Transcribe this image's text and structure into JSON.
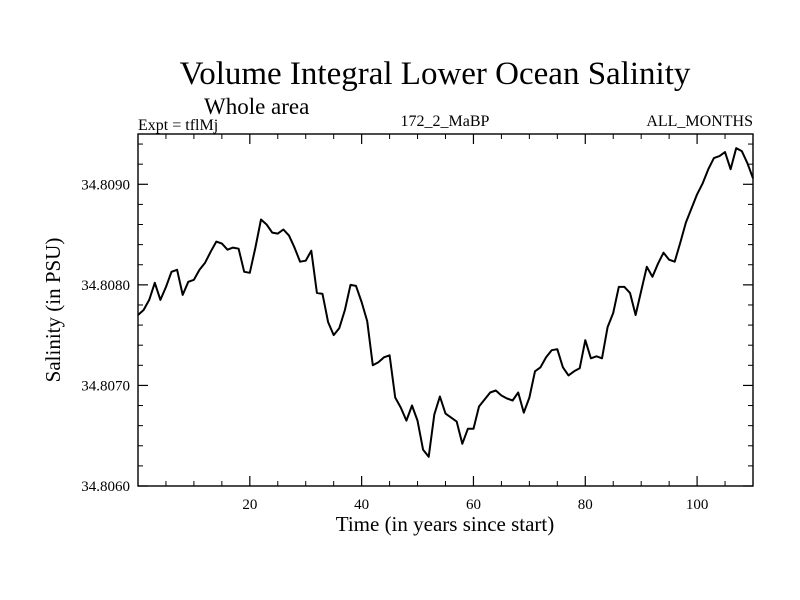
{
  "chart_data": {
    "type": "line",
    "title": "Volume Integral Lower Ocean Salinity",
    "subtitle": "Whole area",
    "header_left": "Expt = tflMj",
    "header_center": "172_2_MaBP",
    "header_right": "ALL_MONTHS",
    "xlabel": "Time (in years since start)",
    "ylabel": "Salinity (in PSU)",
    "xlim": [
      0,
      110
    ],
    "ylim": [
      34.806,
      34.8095
    ],
    "x_ticks": [
      20,
      40,
      60,
      80,
      100
    ],
    "y_ticks": [
      34.806,
      34.807,
      34.808,
      34.809
    ],
    "x_tick_labels": [
      "20",
      "40",
      "60",
      "80",
      "100"
    ],
    "y_tick_labels": [
      "34.8060",
      "34.8070",
      "34.8080",
      "34.8090"
    ],
    "series": [
      {
        "name": "Salinity",
        "x": [
          0,
          1,
          2,
          3,
          4,
          5,
          6,
          7,
          8,
          9,
          10,
          11,
          12,
          13,
          14,
          15,
          16,
          17,
          18,
          19,
          20,
          21,
          22,
          23,
          24,
          25,
          26,
          27,
          28,
          29,
          30,
          31,
          32,
          33,
          34,
          35,
          36,
          37,
          38,
          39,
          40,
          41,
          42,
          43,
          44,
          45,
          46,
          47,
          48,
          49,
          50,
          51,
          52,
          53,
          54,
          55,
          56,
          57,
          58,
          59,
          60,
          61,
          62,
          63,
          64,
          65,
          66,
          67,
          68,
          69,
          70,
          71,
          72,
          73,
          74,
          75,
          76,
          77,
          78,
          79,
          80,
          81,
          82,
          83,
          84,
          85,
          86,
          87,
          88,
          89,
          90,
          91,
          92,
          93,
          94,
          95,
          96,
          97,
          98,
          99,
          100,
          101,
          102,
          103,
          104,
          105,
          106,
          107,
          108,
          109,
          110
        ],
        "values": [
          34.8077,
          34.80775,
          34.80785,
          34.80802,
          34.80785,
          34.80798,
          34.80813,
          34.80815,
          34.8079,
          34.80803,
          34.80805,
          34.80815,
          34.80822,
          34.80833,
          34.80843,
          34.80841,
          34.80835,
          34.80837,
          34.80836,
          34.80813,
          34.80812,
          34.80837,
          34.80865,
          34.8086,
          34.80852,
          34.80851,
          34.80855,
          34.80849,
          34.80837,
          34.80823,
          34.80824,
          34.80834,
          34.80792,
          34.80791,
          34.80763,
          34.8075,
          34.80757,
          34.80775,
          34.808,
          34.80799,
          34.80783,
          34.80764,
          34.8072,
          34.80723,
          34.80728,
          34.8073,
          34.80688,
          34.80678,
          34.80665,
          34.8068,
          34.80665,
          34.80636,
          34.80629,
          34.80671,
          34.80689,
          34.80672,
          34.80668,
          34.80664,
          34.80642,
          34.80657,
          34.80657,
          34.80679,
          34.80686,
          34.80693,
          34.80695,
          34.8069,
          34.80687,
          34.80685,
          34.80693,
          34.80673,
          34.80688,
          34.80714,
          34.80718,
          34.80728,
          34.80735,
          34.80736,
          34.80718,
          34.8071,
          34.80714,
          34.80717,
          34.80745,
          34.80727,
          34.80729,
          34.80727,
          34.80758,
          34.80772,
          34.80798,
          34.80798,
          34.80792,
          34.8077,
          34.80794,
          34.80818,
          34.80808,
          34.80821,
          34.80832,
          34.80825,
          34.80823,
          34.80842,
          34.80862,
          34.80876,
          34.8089,
          34.80901,
          34.80915,
          34.80926,
          34.80928,
          34.80932,
          34.80915,
          34.80936,
          34.80933,
          34.80921,
          34.80906
        ]
      }
    ]
  }
}
